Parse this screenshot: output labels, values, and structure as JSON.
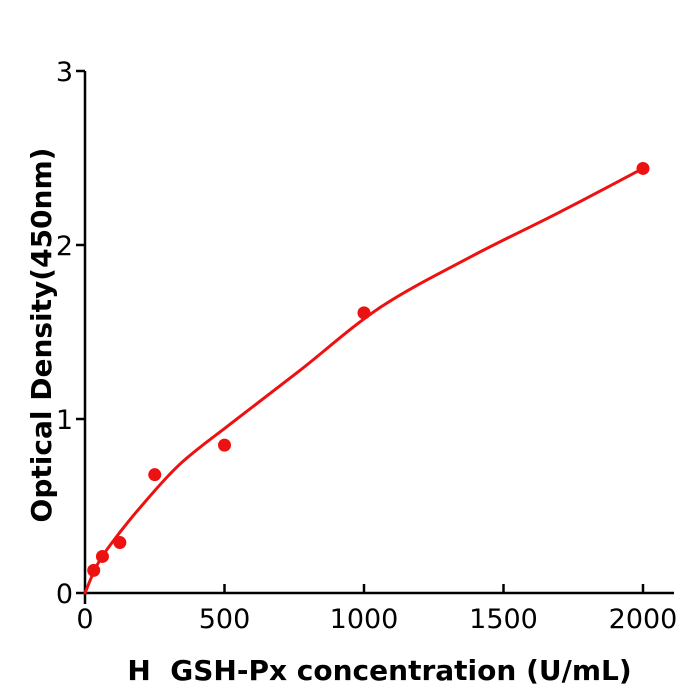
{
  "chart_data": {
    "type": "scatter",
    "xlabel": "H  GSH-Px concentration (U/mL)",
    "ylabel": "Optical Density(450nm)",
    "xlim": [
      0,
      2110
    ],
    "ylim": [
      0,
      3
    ],
    "grid": false,
    "legend": null,
    "x_ticks": {
      "values": [
        0,
        500,
        1000,
        1500,
        2000
      ],
      "labels": [
        "0",
        "500",
        "1000",
        "1500",
        "2000"
      ]
    },
    "y_ticks": {
      "values": [
        0,
        1,
        2,
        3
      ],
      "labels": [
        "0",
        "1",
        "2",
        "3"
      ]
    },
    "colors": {
      "series": "#ee1111",
      "axis": "#000000",
      "background": "#ffffff"
    },
    "series": [
      {
        "name": "standard-points",
        "type": "scatter",
        "color": "#ee1111",
        "x": [
          31.25,
          62.5,
          125,
          250,
          500,
          1000,
          2000
        ],
        "y": [
          0.13,
          0.21,
          0.29,
          0.68,
          0.85,
          1.61,
          2.44
        ]
      },
      {
        "name": "fit-curve",
        "type": "line",
        "color": "#ee1111",
        "points": [
          [
            0,
            0
          ],
          [
            43,
            0.16
          ],
          [
            97,
            0.29
          ],
          [
            197,
            0.49
          ],
          [
            340,
            0.74
          ],
          [
            520,
            0.97
          ],
          [
            771,
            1.28
          ],
          [
            1057,
            1.64
          ],
          [
            1380,
            1.93
          ],
          [
            1703,
            2.19
          ],
          [
            2000,
            2.44
          ]
        ]
      }
    ]
  }
}
